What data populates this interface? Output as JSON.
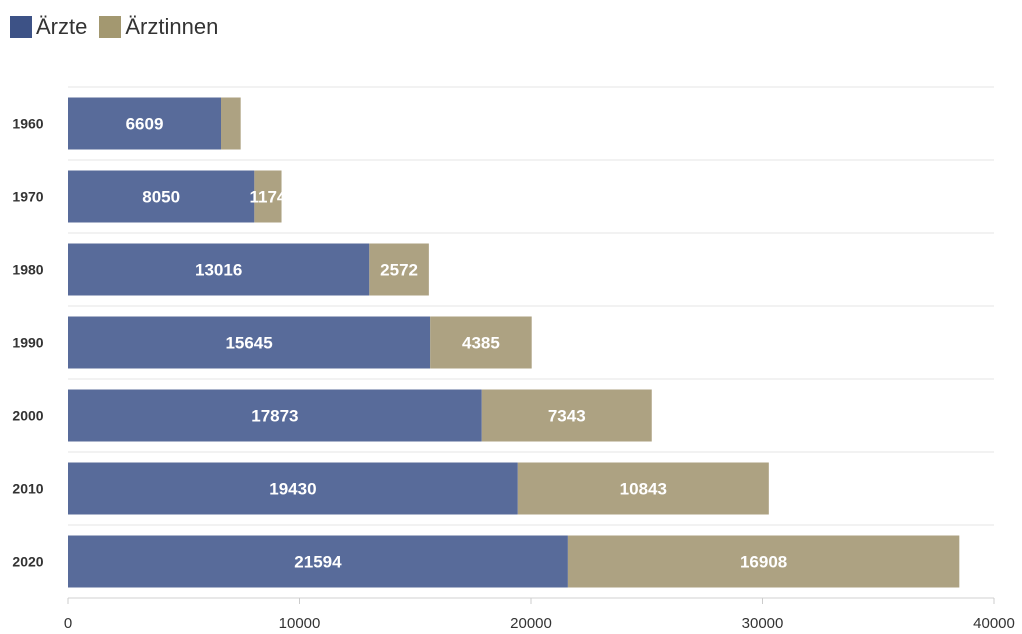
{
  "legend": {
    "items": [
      {
        "label": "Ärzte",
        "color": "#586b9a"
      },
      {
        "label": "Ärztinnen",
        "color": "#ada282"
      }
    ]
  },
  "chart_data": {
    "type": "bar",
    "orientation": "horizontal",
    "stacked": true,
    "categories": [
      "1960",
      "1970",
      "1980",
      "1990",
      "2000",
      "2010",
      "2020"
    ],
    "series": [
      {
        "name": "Ärzte",
        "color": "#586b9a",
        "values": [
          6609,
          8050,
          13016,
          15645,
          17873,
          19430,
          21594
        ]
      },
      {
        "name": "Ärztinnen",
        "color": "#ada282",
        "values": [
          850,
          1174,
          2572,
          4385,
          7343,
          10843,
          16908
        ]
      }
    ],
    "data_labels": [
      [
        "6609",
        "8050",
        "13016",
        "15645",
        "17873",
        "19430",
        "21594"
      ],
      [
        "",
        "1174",
        "2572",
        "4385",
        "7343",
        "10843",
        "16908"
      ]
    ],
    "xlim": [
      0,
      40000
    ],
    "xticks": [
      "0",
      "10000",
      "20000",
      "30000",
      "40000"
    ],
    "xtick_values": [
      0,
      10000,
      20000,
      30000,
      40000
    ],
    "grid": "horizontal separators",
    "legend_position": "top-left"
  }
}
